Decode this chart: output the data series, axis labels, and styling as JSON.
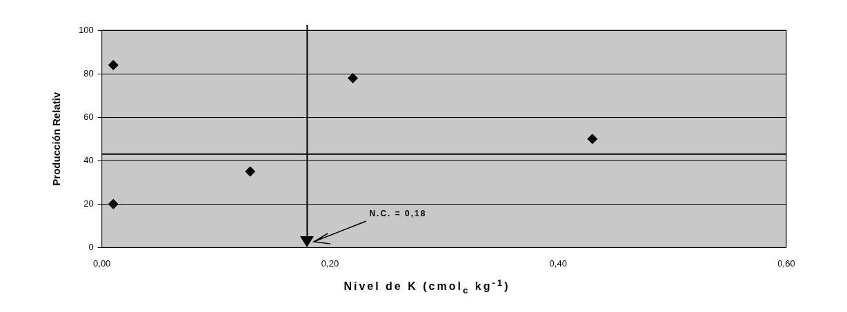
{
  "chart_data": {
    "type": "scatter",
    "xlabel": "Nivel de K (cmol$_{c}$ kg$^{-1}$)",
    "ylabel": "Producción Relativ",
    "x": [
      0.01,
      0.01,
      0.13,
      0.22,
      0.43
    ],
    "values": [
      84,
      20,
      35,
      78,
      50
    ],
    "color": "#000000",
    "marker": "diamond",
    "xlim": [
      0,
      0.6
    ],
    "xticks": [
      {
        "value": 0,
        "label": "0,00"
      },
      {
        "value": 0.2,
        "label": "0,20"
      },
      {
        "value": 0.4,
        "label": "0,40"
      },
      {
        "value": 0.6,
        "label": "0,60"
      }
    ],
    "ylim": [
      0,
      100
    ],
    "yticks": [
      0,
      20,
      40,
      60,
      80,
      100
    ],
    "grid": "y",
    "legend": false,
    "ref_lines": [
      {
        "axis": "x",
        "value": 0.18,
        "color": "#000000"
      },
      {
        "axis": "y",
        "value": 43,
        "color": "#000000"
      }
    ],
    "annotations": [
      "N.C. = 0,18"
    ]
  }
}
